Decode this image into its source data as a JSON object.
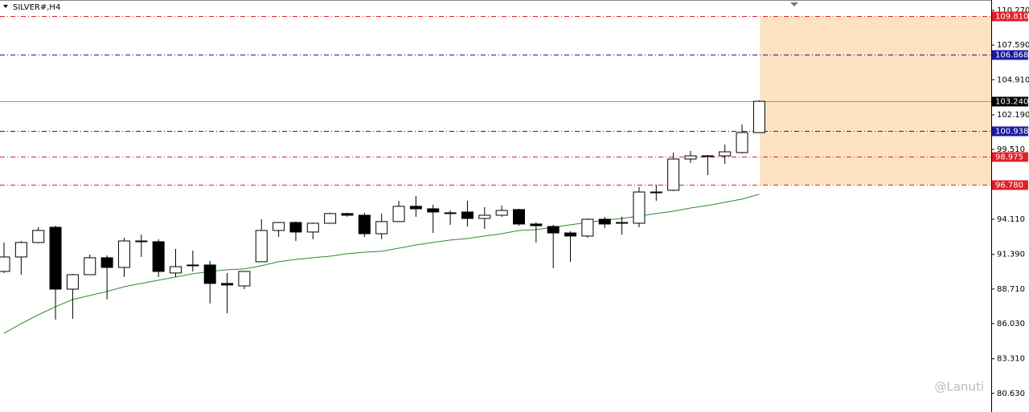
{
  "chart_data": {
    "type": "candlestick",
    "title": "SILVER#,H4",
    "watermark": "@Lanuti",
    "categories": [
      null,
      null,
      null,
      null,
      null,
      null,
      null,
      null,
      null,
      null,
      null,
      null,
      null,
      null,
      null,
      null,
      null,
      null,
      null,
      null,
      null,
      null,
      null,
      null,
      null,
      null,
      null,
      null,
      null,
      null,
      null,
      null,
      null,
      null,
      null,
      null,
      null,
      null,
      null,
      null,
      null,
      null,
      null,
      null,
      null
    ],
    "open": [
      90.07,
      91.19,
      92.31,
      93.49,
      88.7,
      89.82,
      91.13,
      90.38,
      92.43,
      92.37,
      89.95,
      90.51,
      90.57,
      89.14,
      88.95,
      90.82,
      93.24,
      93.86,
      93.12,
      93.8,
      94.55,
      94.42,
      92.99,
      93.93,
      95.11,
      94.92,
      94.61,
      94.67,
      94.17,
      94.42,
      94.86,
      93.74,
      93.55,
      93.05,
      92.81,
      94.11,
      93.86,
      93.8,
      96.22,
      96.35,
      98.77,
      99.02,
      99.02,
      99.27,
      100.82
    ],
    "high": [
      92.31,
      92.43,
      93.49,
      93.61,
      89.88,
      91.38,
      91.31,
      92.68,
      92.93,
      92.56,
      91.81,
      91.69,
      90.88,
      89.95,
      90.1,
      94.11,
      93.9,
      93.93,
      93.85,
      94.61,
      94.61,
      94.61,
      94.55,
      95.54,
      95.91,
      95.23,
      94.79,
      95.54,
      95.04,
      95.17,
      94.92,
      93.86,
      93.68,
      93.18,
      94.17,
      94.3,
      94.3,
      96.6,
      96.78,
      99.27,
      99.39,
      99.08,
      99.89,
      101.45,
      103.31
    ],
    "low": [
      89.95,
      89.82,
      92.25,
      86.34,
      86.4,
      89.8,
      87.9,
      89.64,
      91.19,
      89.64,
      89.64,
      90.07,
      87.59,
      86.84,
      88.7,
      90.8,
      92.74,
      92.43,
      92.56,
      93.8,
      94.3,
      92.74,
      92.56,
      93.93,
      94.3,
      93.05,
      93.68,
      93.55,
      93.37,
      94.3,
      93.61,
      92.31,
      90.32,
      90.82,
      92.68,
      93.43,
      92.93,
      93.49,
      95.54,
      96.29,
      98.46,
      97.53,
      98.4,
      99.21,
      100.8
    ],
    "close": [
      91.19,
      92.31,
      93.24,
      88.7,
      89.82,
      91.13,
      90.38,
      92.43,
      92.37,
      90.07,
      90.44,
      90.57,
      89.14,
      89.02,
      90.07,
      93.24,
      93.86,
      93.12,
      93.8,
      94.55,
      94.42,
      92.99,
      93.93,
      95.11,
      94.92,
      94.67,
      94.55,
      94.17,
      94.42,
      94.79,
      93.74,
      93.61,
      93.05,
      92.81,
      94.11,
      93.74,
      93.8,
      96.22,
      96.16,
      98.77,
      99.02,
      98.99,
      99.33,
      100.82,
      103.24
    ],
    "up_color": "#ffffff",
    "down_color": "#000000",
    "ma": {
      "color": "#2e8b2e",
      "values": [
        85.29,
        86.03,
        86.71,
        87.34,
        87.9,
        88.21,
        88.52,
        88.89,
        89.14,
        89.39,
        89.64,
        89.89,
        90.07,
        90.2,
        90.26,
        90.51,
        90.82,
        91.0,
        91.13,
        91.25,
        91.44,
        91.56,
        91.63,
        91.87,
        92.12,
        92.31,
        92.5,
        92.62,
        92.81,
        92.99,
        93.24,
        93.3,
        93.49,
        93.68,
        93.86,
        94.05,
        94.17,
        94.36,
        94.55,
        94.73,
        94.98,
        95.17,
        95.42,
        95.67,
        96.04
      ]
    },
    "levels": [
      {
        "value": 109.81,
        "label": "109.810",
        "color": "#e0202a",
        "style": "dashdot"
      },
      {
        "value": 106.868,
        "label": "106.868",
        "color": "#1a1aa0",
        "style": "dashdot"
      },
      {
        "value": 103.24,
        "label": "103.240",
        "color": "#000000",
        "style": "solid"
      },
      {
        "value": 100.938,
        "label": "100.938",
        "color": "#1a1aa0",
        "style": "dashdot"
      },
      {
        "value": 98.975,
        "label": "98.975",
        "color": "#e0202a",
        "style": "dashdot"
      },
      {
        "value": 96.78,
        "label": "96.780",
        "color": "#e0202a",
        "style": "dashdot"
      }
    ],
    "zone_color": "#fde2c2",
    "ylim": [
      79.19,
      111.08
    ],
    "yticks": [
      {
        "value": 110.27,
        "label": "110.270"
      },
      {
        "value": 107.59,
        "label": "107.590"
      },
      {
        "value": 104.91,
        "label": "104.910"
      },
      {
        "value": 102.19,
        "label": "102.190"
      },
      {
        "value": 99.51,
        "label": "99.510"
      },
      {
        "value": 94.11,
        "label": "94.110"
      },
      {
        "value": 91.39,
        "label": "91.390"
      },
      {
        "value": 88.71,
        "label": "88.710"
      },
      {
        "value": 86.03,
        "label": "86.030"
      },
      {
        "value": 83.31,
        "label": "83.310"
      },
      {
        "value": 80.63,
        "label": "80.630"
      }
    ]
  }
}
